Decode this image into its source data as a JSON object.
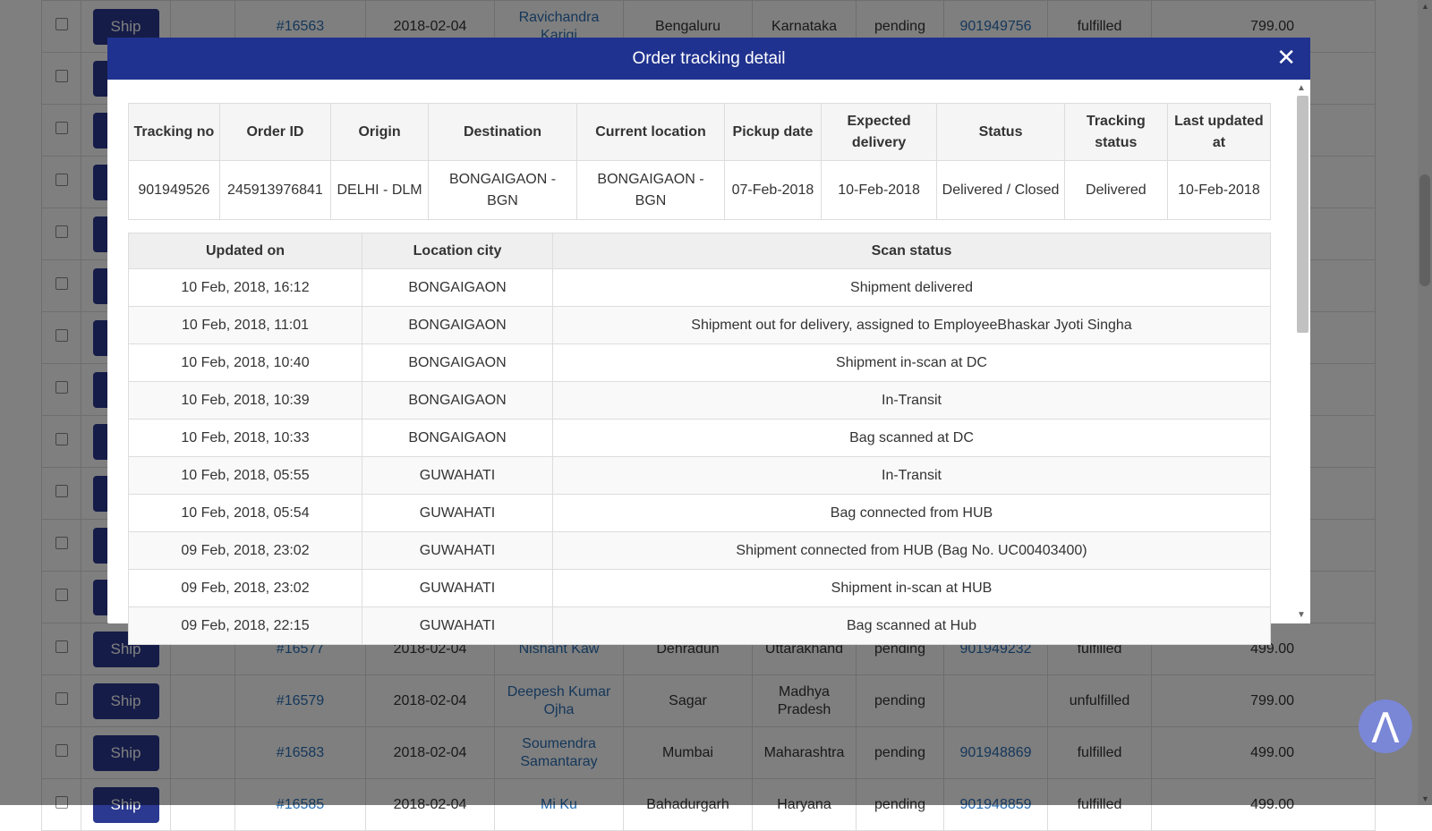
{
  "background_orders": {
    "ship_label": "Ship",
    "rows": [
      {
        "order": "#16563",
        "date": "2018-02-04",
        "customer": "Ravichandra Karigi",
        "city": "Bengaluru",
        "state": "Karnataka",
        "payment": "pending",
        "tracking": "901949756",
        "fulfillment": "fulfilled",
        "amount": "799.00"
      },
      {
        "order": "",
        "date": "",
        "customer": "",
        "city": "",
        "state": "",
        "payment": "",
        "tracking": "",
        "fulfillment": "",
        "amount": ""
      },
      {
        "order": "",
        "date": "",
        "customer": "",
        "city": "",
        "state": "",
        "payment": "",
        "tracking": "",
        "fulfillment": "",
        "amount": ""
      },
      {
        "order": "",
        "date": "",
        "customer": "",
        "city": "",
        "state": "",
        "payment": "",
        "tracking": "",
        "fulfillment": "",
        "amount": ""
      },
      {
        "order": "",
        "date": "",
        "customer": "",
        "city": "",
        "state": "",
        "payment": "",
        "tracking": "",
        "fulfillment": "",
        "amount": ""
      },
      {
        "order": "",
        "date": "",
        "customer": "",
        "city": "",
        "state": "",
        "payment": "",
        "tracking": "",
        "fulfillment": "",
        "amount": ""
      },
      {
        "order": "",
        "date": "",
        "customer": "",
        "city": "",
        "state": "",
        "payment": "",
        "tracking": "",
        "fulfillment": "",
        "amount": ""
      },
      {
        "order": "",
        "date": "",
        "customer": "",
        "city": "",
        "state": "",
        "payment": "",
        "tracking": "",
        "fulfillment": "",
        "amount": ""
      },
      {
        "order": "",
        "date": "",
        "customer": "",
        "city": "",
        "state": "",
        "payment": "",
        "tracking": "",
        "fulfillment": "",
        "amount": ""
      },
      {
        "order": "",
        "date": "",
        "customer": "",
        "city": "",
        "state": "",
        "payment": "",
        "tracking": "",
        "fulfillment": "",
        "amount": ""
      },
      {
        "order": "",
        "date": "",
        "customer": "",
        "city": "",
        "state": "",
        "payment": "",
        "tracking": "",
        "fulfillment": "",
        "amount": ""
      },
      {
        "order": "",
        "date": "",
        "customer": "",
        "city": "",
        "state": "",
        "payment": "",
        "tracking": "",
        "fulfillment": "",
        "amount": ""
      },
      {
        "order": "#16577",
        "date": "2018-02-04",
        "customer": "Nishant Kaw",
        "city": "Dehradun",
        "state": "Uttarakhand",
        "payment": "pending",
        "tracking": "901949232",
        "fulfillment": "fulfilled",
        "amount": "499.00"
      },
      {
        "order": "#16579",
        "date": "2018-02-04",
        "customer": "Deepesh Kumar Ojha",
        "city": "Sagar",
        "state": "Madhya Pradesh",
        "payment": "pending",
        "tracking": "",
        "fulfillment": "unfulfilled",
        "amount": "799.00"
      },
      {
        "order": "#16583",
        "date": "2018-02-04",
        "customer": "Soumendra Samantaray",
        "city": "Mumbai",
        "state": "Maharashtra",
        "payment": "pending",
        "tracking": "901948869",
        "fulfillment": "fulfilled",
        "amount": "499.00"
      },
      {
        "order": "#16585",
        "date": "2018-02-04",
        "customer": "Mi Ku",
        "city": "Bahadurgarh",
        "state": "Haryana",
        "payment": "pending",
        "tracking": "901948859",
        "fulfillment": "fulfilled",
        "amount": "499.00"
      }
    ]
  },
  "modal": {
    "title": "Order tracking detail",
    "close_icon": "✕",
    "summary_headers": [
      "Tracking no",
      "Order ID",
      "Origin",
      "Destination",
      "Current location",
      "Pickup date",
      "Expected delivery",
      "Status",
      "Tracking status",
      "Last updated at"
    ],
    "summary_values": [
      "901949526",
      "245913976841",
      "DELHI - DLM",
      "BONGAIGAON - BGN",
      "BONGAIGAON - BGN",
      "07-Feb-2018",
      "10-Feb-2018",
      "Delivered / Closed",
      "Delivered",
      "10-Feb-2018"
    ],
    "scan_headers": [
      "Updated on",
      "Location city",
      "Scan status"
    ],
    "scans": [
      [
        "10 Feb, 2018, 16:12",
        "BONGAIGAON",
        "Shipment delivered"
      ],
      [
        "10 Feb, 2018, 11:01",
        "BONGAIGAON",
        "Shipment out for delivery, assigned to EmployeeBhaskar Jyoti Singha"
      ],
      [
        "10 Feb, 2018, 10:40",
        "BONGAIGAON",
        "Shipment in-scan at DC"
      ],
      [
        "10 Feb, 2018, 10:39",
        "BONGAIGAON",
        "In-Transit"
      ],
      [
        "10 Feb, 2018, 10:33",
        "BONGAIGAON",
        "Bag scanned at DC"
      ],
      [
        "10 Feb, 2018, 05:55",
        "GUWAHATI",
        "In-Transit"
      ],
      [
        "10 Feb, 2018, 05:54",
        "GUWAHATI",
        "Bag connected from HUB"
      ],
      [
        "09 Feb, 2018, 23:02",
        "GUWAHATI",
        "Shipment connected from HUB (Bag No. UC00403400)"
      ],
      [
        "09 Feb, 2018, 23:02",
        "GUWAHATI",
        "Shipment in-scan at HUB"
      ],
      [
        "09 Feb, 2018, 22:15",
        "GUWAHATI",
        "Bag scanned at Hub"
      ]
    ]
  },
  "scroll_top_icon": "Λ",
  "colors": {
    "header_blue": "#20328f",
    "ship_button": "#2b3990",
    "link": "#2a6fb5",
    "overlay": "rgba(0,0,0,0.5)"
  }
}
